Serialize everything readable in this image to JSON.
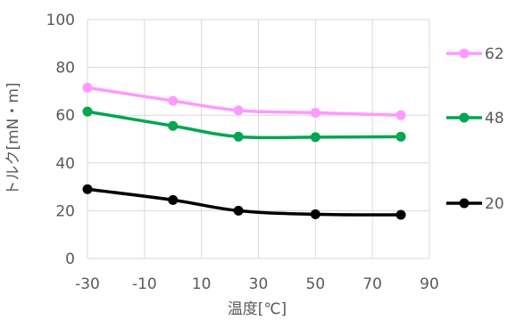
{
  "chart_data": {
    "type": "line",
    "title": "",
    "xlabel": "温度[℃]",
    "ylabel": "トルク[mN・m]",
    "xlim": [
      -30,
      90
    ],
    "ylim": [
      0,
      100
    ],
    "xticks": [
      -30,
      -10,
      10,
      30,
      50,
      70,
      90
    ],
    "yticks": [
      0,
      20,
      40,
      60,
      80,
      100
    ],
    "grid": true,
    "legend": "right",
    "series": [
      {
        "name": "62",
        "color": "#ff99ff",
        "x": [
          -30,
          0,
          23,
          50,
          80
        ],
        "y": [
          71.5,
          66,
          62,
          61,
          60
        ]
      },
      {
        "name": "48",
        "color": "#00a651",
        "x": [
          -30,
          0,
          23,
          50,
          80
        ],
        "y": [
          61.5,
          55.5,
          51,
          50.8,
          51
        ]
      },
      {
        "name": "20",
        "color": "#000000",
        "x": [
          -30,
          0,
          23,
          50,
          80
        ],
        "y": [
          29,
          24.5,
          20,
          18.5,
          18.3
        ]
      }
    ]
  }
}
